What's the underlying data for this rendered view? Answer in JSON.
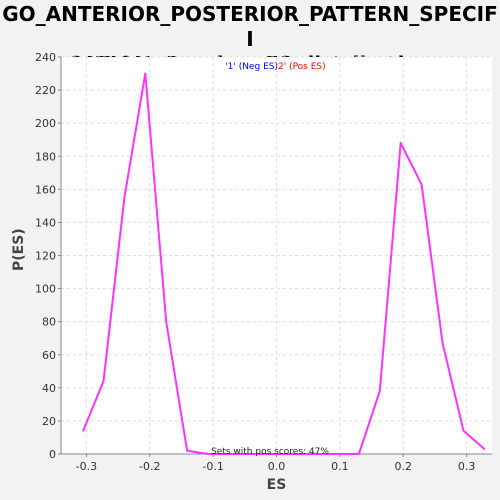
{
  "title": {
    "line1": "GO_ANTERIOR_POSTERIOR_PATTERN_SPECIFI",
    "line2": "CATION: Random ES distribution"
  },
  "colors": {
    "background": "#f2f2f2",
    "plot_background": "#ffffff",
    "grid": "#dddddd",
    "line": "#ff33ff",
    "neg_legend": "#0000ff",
    "pos_legend": "#ff0000"
  },
  "chart_data": {
    "type": "line",
    "xlabel": "ES",
    "ylabel": "P(ES)",
    "xlim": [
      -0.34,
      0.34
    ],
    "ylim": [
      0,
      240
    ],
    "xticks": [
      -0.3,
      -0.2,
      -0.1,
      0.0,
      0.1,
      0.2,
      0.3
    ],
    "xtick_labels": [
      "-0.3",
      "-0.2",
      "-0.1",
      "0.0",
      "0.1",
      "0.2",
      "0.3"
    ],
    "yticks": [
      0,
      20,
      40,
      60,
      80,
      100,
      120,
      140,
      160,
      180,
      200,
      220,
      240
    ],
    "grid": true,
    "legend": {
      "position": "top-center",
      "entries": [
        {
          "text": "'1' (Neg ES)",
          "color": "#0000ff"
        },
        {
          "text": "2' (Pos ES)",
          "color": "#ff0000"
        }
      ]
    },
    "annotation": "Sets with pos scores: 47%",
    "series": [
      {
        "color": "#ff33ff",
        "x": [
          -0.305,
          -0.273,
          -0.24,
          -0.207,
          -0.174,
          -0.141,
          -0.108,
          -0.075,
          -0.042,
          -0.009,
          0.024,
          0.057,
          0.09,
          0.13,
          0.163,
          0.196,
          0.229,
          0.262,
          0.295,
          0.328
        ],
        "y": [
          14,
          44,
          155,
          230,
          80,
          2,
          0,
          0,
          0,
          0,
          0,
          0,
          0,
          0,
          38,
          188,
          163,
          67,
          14,
          3
        ]
      }
    ]
  }
}
